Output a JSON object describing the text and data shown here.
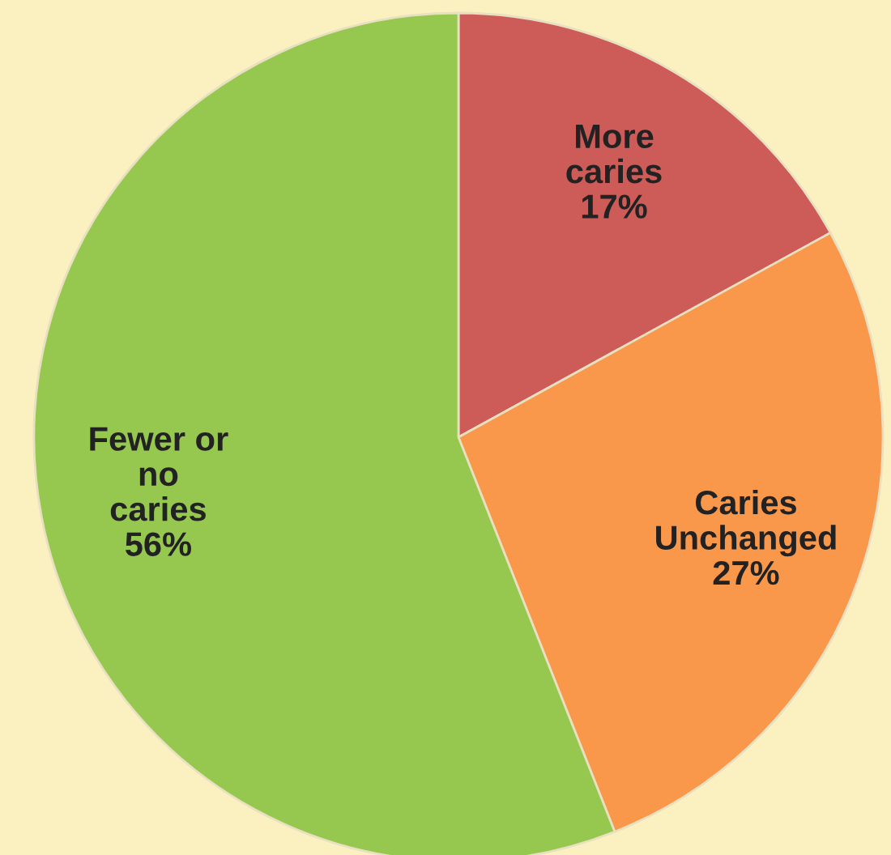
{
  "chart_data": {
    "type": "pie",
    "categories": [
      "More\ncaries",
      "Caries\nUnchanged",
      "Fewer or\nno\ncaries"
    ],
    "values": [
      17,
      27,
      56
    ],
    "colors": [
      "#cd5b57",
      "#f9974a",
      "#96c850"
    ],
    "value_labels": [
      "17%",
      "27%",
      "56%"
    ]
  }
}
